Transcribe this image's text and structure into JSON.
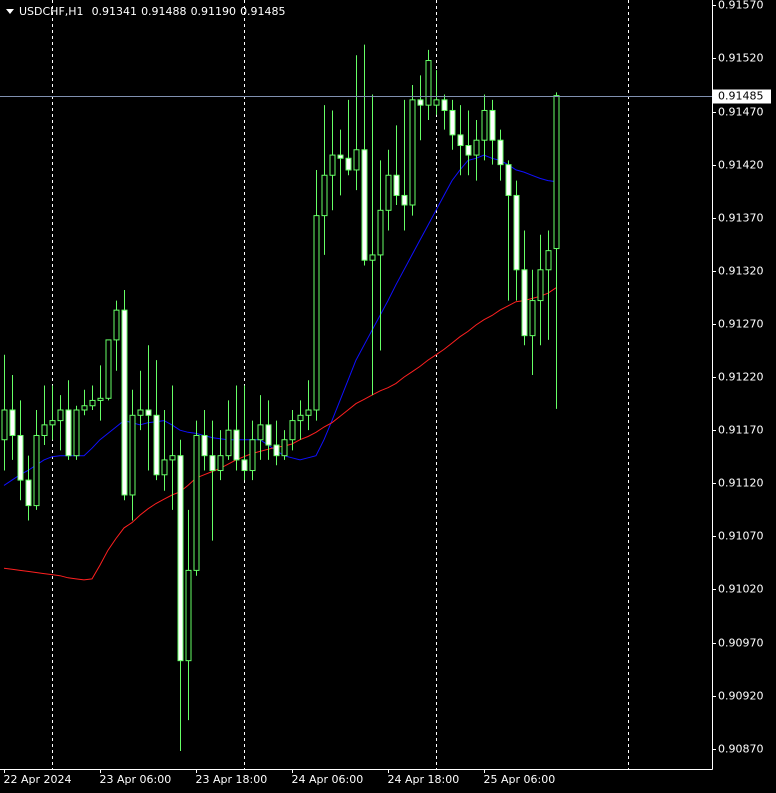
{
  "chart_data": {
    "type": "candlestick",
    "header": {
      "symbol": "USDCHF,H1",
      "ohlc_labels": [
        "0.91341",
        "0.91488",
        "0.91190",
        "0.91485"
      ]
    },
    "open": [
      0.91161,
      0.91189,
      0.91165,
      0.91123,
      0.91099,
      0.91165,
      0.91175,
      0.91179,
      0.91189,
      0.91146,
      0.91189,
      0.91193,
      0.91198,
      0.912,
      0.91255,
      0.91283,
      0.91109,
      0.91184,
      0.91189,
      0.91184,
      0.91128,
      0.91142,
      0.91146,
      0.90953,
      0.91038,
      0.91165,
      0.91146,
      0.91132,
      0.91146,
      0.9117,
      0.91142,
      0.91132,
      0.91161,
      0.91175,
      0.91156,
      0.91146,
      0.91161,
      0.91179,
      0.91184,
      0.91189,
      0.91372,
      0.9141,
      0.91429,
      0.91426,
      0.91415,
      0.91434,
      0.9133,
      0.91335,
      0.91377,
      0.9141,
      0.91391,
      0.91382,
      0.91481,
      0.91476,
      0.91476,
      0.91481,
      0.91471,
      0.91448,
      0.91438,
      0.91429,
      0.91443,
      0.91471,
      0.91443,
      0.9142,
      0.91391,
      0.91321,
      0.91259,
      0.91292,
      0.91321,
      0.91341
    ],
    "high": [
      0.91241,
      0.91222,
      0.91198,
      0.91146,
      0.91189,
      0.91212,
      0.91212,
      0.91203,
      0.91217,
      0.91193,
      0.91208,
      0.91212,
      0.91231,
      0.91255,
      0.91292,
      0.91302,
      0.91208,
      0.91226,
      0.9125,
      0.91236,
      0.91189,
      0.91212,
      0.91161,
      0.91095,
      0.91179,
      0.91189,
      0.91179,
      0.9117,
      0.91198,
      0.91212,
      0.91212,
      0.91179,
      0.91203,
      0.91198,
      0.91179,
      0.9117,
      0.91189,
      0.91198,
      0.91217,
      0.91415,
      0.91476,
      0.91471,
      0.91453,
      0.91481,
      0.91523,
      0.91533,
      0.91486,
      0.91424,
      0.91434,
      0.91457,
      0.91481,
      0.91495,
      0.91504,
      0.91528,
      0.91509,
      0.91486,
      0.91481,
      0.91476,
      0.91471,
      0.91462,
      0.91486,
      0.91481,
      0.91453,
      0.91424,
      0.91405,
      0.91358,
      0.91321,
      0.91354,
      0.91358,
      0.91488
    ],
    "low": [
      0.91132,
      0.91142,
      0.91104,
      0.91085,
      0.91095,
      0.91156,
      0.91161,
      0.91151,
      0.91142,
      0.91142,
      0.91184,
      0.91189,
      0.91179,
      0.91198,
      0.91226,
      0.91104,
      0.91085,
      0.9117,
      0.91132,
      0.91123,
      0.91113,
      0.91095,
      0.90868,
      0.90897,
      0.91033,
      0.91132,
      0.91066,
      0.91123,
      0.91142,
      0.91132,
      0.91123,
      0.91123,
      0.91142,
      0.91142,
      0.91137,
      0.91142,
      0.91151,
      0.91161,
      0.9117,
      0.91179,
      0.91335,
      0.91377,
      0.91391,
      0.9141,
      0.91396,
      0.91325,
      0.91203,
      0.91245,
      0.91358,
      0.91382,
      0.91358,
      0.91372,
      0.91443,
      0.91462,
      0.91467,
      0.91453,
      0.91434,
      0.9141,
      0.9141,
      0.91405,
      0.91424,
      0.9142,
      0.91405,
      0.91292,
      0.91292,
      0.9125,
      0.91222,
      0.9125,
      0.91255,
      0.9119
    ],
    "close": [
      0.91189,
      0.91165,
      0.91123,
      0.91099,
      0.91165,
      0.91175,
      0.91179,
      0.91189,
      0.91146,
      0.91189,
      0.91193,
      0.91198,
      0.912,
      0.91255,
      0.91283,
      0.91109,
      0.91184,
      0.91189,
      0.91184,
      0.91128,
      0.91142,
      0.91146,
      0.90953,
      0.91038,
      0.91165,
      0.91146,
      0.91132,
      0.91146,
      0.9117,
      0.91142,
      0.91132,
      0.91161,
      0.91175,
      0.91156,
      0.91146,
      0.91161,
      0.91179,
      0.91184,
      0.91189,
      0.91372,
      0.9141,
      0.91429,
      0.91426,
      0.91415,
      0.91434,
      0.9133,
      0.91335,
      0.91377,
      0.9141,
      0.91391,
      0.91382,
      0.91481,
      0.91476,
      0.91518,
      0.91481,
      0.91471,
      0.91448,
      0.91438,
      0.91429,
      0.91443,
      0.91471,
      0.91443,
      0.9142,
      0.91391,
      0.91321,
      0.91259,
      0.91292,
      0.91321,
      0.91339,
      0.91485
    ],
    "candle_color": "#66ff66",
    "bull_body_color": "#000000",
    "bear_body_color": "#ffffff",
    "lines": [
      {
        "color": "#1010ff",
        "values": [
          0.91118,
          0.91123,
          0.91128,
          0.91132,
          0.91137,
          0.91142,
          0.91145,
          0.91146,
          0.91146,
          0.91146,
          0.91146,
          0.91153,
          0.91161,
          0.91167,
          0.91173,
          0.91179,
          0.91177,
          0.91175,
          0.91177,
          0.91178,
          0.91179,
          0.91175,
          0.9117,
          0.91168,
          0.91167,
          0.91165,
          0.91163,
          0.91162,
          0.91161,
          0.91161,
          0.91161,
          0.91161,
          0.91161,
          0.91156,
          0.91151,
          0.91146,
          0.91144,
          0.91142,
          0.91144,
          0.91146,
          0.91161,
          0.91179,
          0.91198,
          0.91217,
          0.91236,
          0.9125,
          0.91264,
          0.91278,
          0.91292,
          0.91307,
          0.91321,
          0.91335,
          0.91349,
          0.91363,
          0.91377,
          0.91391,
          0.91405,
          0.91415,
          0.91424,
          0.91426,
          0.91429,
          0.91426,
          0.91424,
          0.9142,
          0.91415,
          0.91413,
          0.9141,
          0.91407,
          0.91405,
          0.91404
        ]
      },
      {
        "color": "#ff2020",
        "values": [
          0.9104,
          0.91039,
          0.91038,
          0.91037,
          0.91036,
          0.91035,
          0.91034,
          0.91033,
          0.91031,
          0.9103,
          0.91029,
          0.9103,
          0.91043,
          0.91057,
          0.91068,
          0.91078,
          0.91083,
          0.9109,
          0.91096,
          0.91101,
          0.91105,
          0.91109,
          0.91112,
          0.91118,
          0.91125,
          0.91128,
          0.91131,
          0.91134,
          0.91138,
          0.91142,
          0.91145,
          0.91148,
          0.9115,
          0.91152,
          0.91154,
          0.91155,
          0.91157,
          0.91161,
          0.91164,
          0.91168,
          0.91173,
          0.91177,
          0.91183,
          0.91189,
          0.91195,
          0.91199,
          0.91203,
          0.91207,
          0.9121,
          0.91214,
          0.9122,
          0.91225,
          0.9123,
          0.91236,
          0.91241,
          0.91246,
          0.91252,
          0.91258,
          0.91263,
          0.91269,
          0.91274,
          0.91278,
          0.91283,
          0.91287,
          0.91291,
          0.91292,
          0.91294,
          0.91296,
          0.91299,
          0.91304
        ]
      }
    ],
    "current_price_line_color": "#8090b0",
    "xlim": [
      -0.5,
      88.5
    ],
    "xticks": [
      {
        "value": 0,
        "label": "22 Apr 2024"
      },
      {
        "value": 12,
        "label": "23 Apr 06:00"
      },
      {
        "value": 24,
        "label": "23 Apr 18:00"
      },
      {
        "value": 36,
        "label": "24 Apr 06:00"
      },
      {
        "value": 48,
        "label": "24 Apr 18:00"
      },
      {
        "value": 60,
        "label": "25 Apr 06:00"
      }
    ],
    "x_grid": [
      6,
      30,
      54,
      78
    ],
    "ylim": [
      0.90851,
      0.91575
    ],
    "yticks": [
      {
        "value": 0.9157,
        "label": "0.91570"
      },
      {
        "value": 0.9152,
        "label": "0.91520"
      },
      {
        "value": 0.9147,
        "label": "0.91470"
      },
      {
        "value": 0.9142,
        "label": "0.91420"
      },
      {
        "value": 0.9137,
        "label": "0.91370"
      },
      {
        "value": 0.9132,
        "label": "0.91320"
      },
      {
        "value": 0.9127,
        "label": "0.91270"
      },
      {
        "value": 0.9122,
        "label": "0.91220"
      },
      {
        "value": 0.9117,
        "label": "0.91170"
      },
      {
        "value": 0.9112,
        "label": "0.91120"
      },
      {
        "value": 0.9107,
        "label": "0.91070"
      },
      {
        "value": 0.9102,
        "label": "0.91020"
      },
      {
        "value": 0.9097,
        "label": "0.90970"
      },
      {
        "value": 0.9092,
        "label": "0.90920"
      },
      {
        "value": 0.9087,
        "label": "0.90870"
      }
    ]
  }
}
